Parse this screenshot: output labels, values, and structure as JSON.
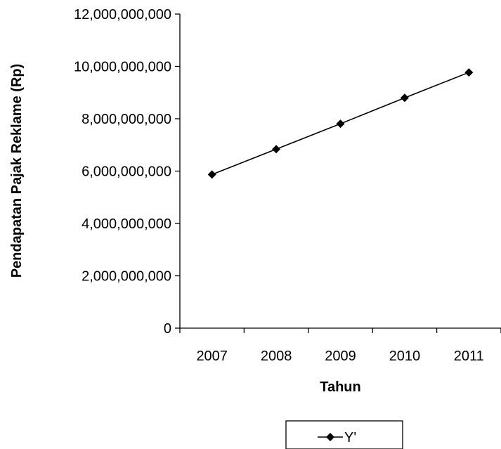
{
  "chart_data": {
    "type": "line",
    "title": "",
    "xlabel": "Tahun",
    "ylabel": "Pendapatan Pajak Reklame (Rp)",
    "categories": [
      "2007",
      "2008",
      "2009",
      "2010",
      "2011"
    ],
    "series": [
      {
        "name": "Y'",
        "values": [
          5870000000,
          6840000000,
          7810000000,
          8800000000,
          9770000000
        ],
        "color": "#000000",
        "marker": "diamond"
      }
    ],
    "ylim": [
      0,
      12000000000
    ],
    "yticks": [
      0,
      2000000000,
      4000000000,
      6000000000,
      8000000000,
      10000000000,
      12000000000
    ],
    "ytick_labels": [
      "0",
      "2,000,000,000",
      "4,000,000,000",
      "6,000,000,000",
      "8,000,000,000",
      "10,000,000,000",
      "12,000,000,000"
    ],
    "grid": false,
    "legend": "bottom"
  }
}
